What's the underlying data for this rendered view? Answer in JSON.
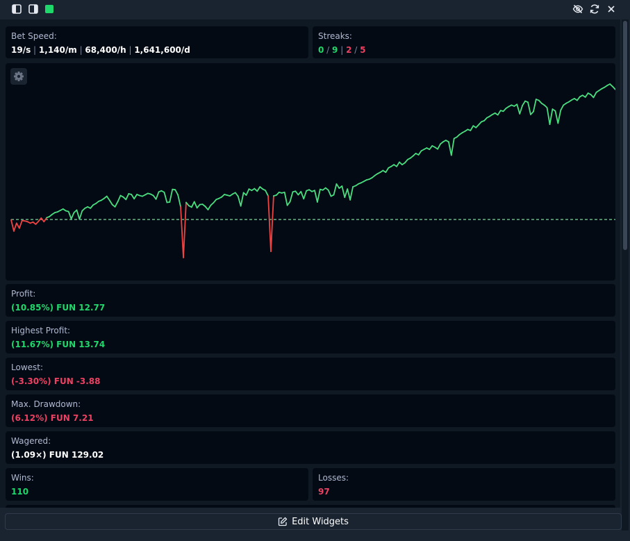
{
  "toolbar": {
    "left_icons": [
      "sidebar-left-icon",
      "sidebar-right-icon",
      "status-square-icon"
    ],
    "right_icons": [
      "eye-off-icon",
      "refresh-icon",
      "close-icon"
    ],
    "status_color": "#1fd86c"
  },
  "bet_speed": {
    "label": "Bet Speed:",
    "per_second": "19/s",
    "per_minute": "1,140/m",
    "per_hour": "68,400/h",
    "per_day": "1,641,600/d"
  },
  "streaks": {
    "label": "Streaks:",
    "values": [
      "0",
      "9",
      "2",
      "5"
    ]
  },
  "chart": {
    "settings_icon": "gear-icon"
  },
  "chart_data": {
    "type": "line",
    "baseline": 0,
    "positive_color": "#4ade80",
    "negative_color": "#ef4444",
    "baseline_color": "#86efac",
    "values": [
      -0.1,
      -3.2,
      -1.0,
      -2.4,
      -0.3,
      -0.4,
      -0.6,
      -1.0,
      -0.7,
      -1.3,
      -0.5,
      0.4,
      -0.6,
      0.5,
      0.8,
      1.4,
      1.9,
      2.1,
      2.5,
      2.9,
      2.4,
      2.2,
      0.2,
      1.9,
      2.6,
      0.1,
      2.4,
      3.1,
      3.5,
      3.1,
      4.0,
      4.4,
      5.0,
      5.3,
      5.8,
      6.4,
      5.3,
      4.1,
      3.5,
      4.9,
      6.6,
      6.2,
      5.5,
      7.1,
      6.9,
      5.7,
      6.9,
      6.6,
      6.4,
      6.8,
      7.2,
      7.0,
      6.6,
      5.6,
      7.6,
      7.9,
      7.5,
      4.7,
      4.8,
      8.3,
      8.2,
      6.8,
      3.5,
      -10.5,
      4.7,
      3.8,
      3.4,
      4.9,
      3.2,
      4.1,
      4.2,
      3.6,
      2.7,
      3.9,
      4.6,
      5.5,
      5.8,
      6.2,
      6.9,
      6.7,
      6.5,
      7.0,
      7.4,
      6.4,
      3.7,
      7.4,
      6.7,
      8.4,
      8.0,
      8.5,
      7.8,
      9.0,
      8.4,
      8.0,
      6.5,
      -8.8,
      6.5,
      6.7,
      7.5,
      7.3,
      7.5,
      3.9,
      4.9,
      7.6,
      7.8,
      6.8,
      7.7,
      5.7,
      7.9,
      8.2,
      7.7,
      8.0,
      4.8,
      8.3,
      8.1,
      8.7,
      8.1,
      6.4,
      6.8,
      9.8,
      8.6,
      9.2,
      6.1,
      8.4,
      5.4,
      9.0,
      9.3,
      9.8,
      10.1,
      10.5,
      10.9,
      11.1,
      11.5,
      12.1,
      12.6,
      13.0,
      13.5,
      13.0,
      14.2,
      14.6,
      15.1,
      14.6,
      15.8,
      15.1,
      15.6,
      16.5,
      16.9,
      17.5,
      18.2,
      17.8,
      18.9,
      19.3,
      19.7,
      19.3,
      20.3,
      19.9,
      19.4,
      20.8,
      21.4,
      21.8,
      21.4,
      17.7,
      22.3,
      22.7,
      23.4,
      23.9,
      24.3,
      24.8,
      24.5,
      25.8,
      25.3,
      26.1,
      26.9,
      27.2,
      28.0,
      28.4,
      28.9,
      29.3,
      28.8,
      30.0,
      29.8,
      30.6,
      31.1,
      31.5,
      31.2,
      31.7,
      29.1,
      31.4,
      32.6,
      32.3,
      28.9,
      29.7,
      33.1,
      32.8,
      32.0,
      31.5,
      30.8,
      26.2,
      30.4,
      29.9,
      26.5,
      30.1,
      31.5,
      32.0,
      32.4,
      32.9,
      33.3,
      32.8,
      33.8,
      34.2,
      33.7,
      34.8,
      34.4,
      33.6,
      35.0,
      35.5,
      36.0,
      36.4,
      36.9,
      37.3,
      36.6,
      35.8
    ]
  },
  "profit": {
    "label": "Profit:",
    "value": "(10.85%) FUN 12.77"
  },
  "highest_profit": {
    "label": "Highest Profit:",
    "value": "(11.67%) FUN 13.74"
  },
  "lowest": {
    "label": "Lowest:",
    "value": "(-3.30%) FUN -3.88"
  },
  "max_drawdown": {
    "label": "Max. Drawdown:",
    "value": "(6.12%) FUN 7.21"
  },
  "wagered": {
    "label": "Wagered:",
    "value": "(1.09×) FUN 129.02"
  },
  "wins": {
    "label": "Wins:",
    "value": "110"
  },
  "losses": {
    "label": "Losses:",
    "value": "97"
  },
  "edit_widgets": {
    "label": "Edit Widgets",
    "icon": "edit-icon"
  }
}
